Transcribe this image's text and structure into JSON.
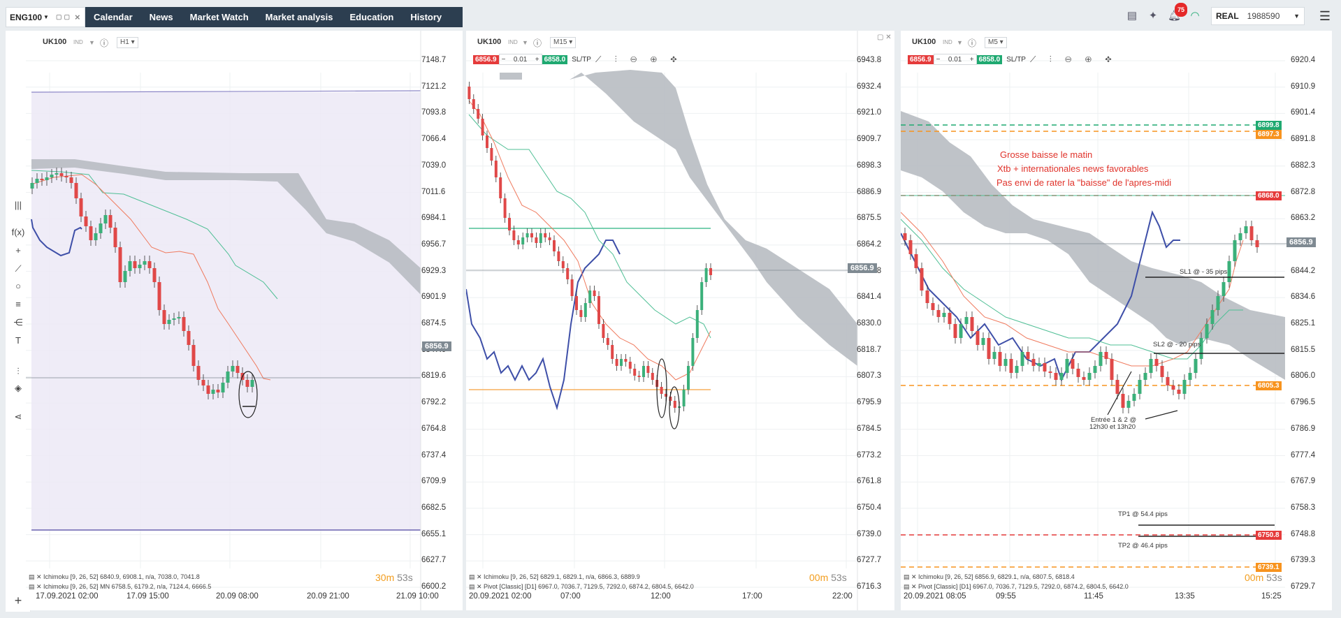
{
  "workspace_tab": {
    "label": "ENG100"
  },
  "nav": [
    "Calendar",
    "News",
    "Market Watch",
    "Market analysis",
    "Education",
    "History"
  ],
  "notifications": {
    "count": "75"
  },
  "account": {
    "mode": "REAL",
    "number": "1988590"
  },
  "colors": {
    "bid": "#e53b3b",
    "ask": "#1fa971",
    "nav_bg": "#2c3e50",
    "timer": "#f29d1e",
    "pivot": "#f7931e",
    "resistance": "#e53b3b",
    "annotation": "#e0332b"
  },
  "left_tools": [
    "columns-icon",
    "function-icon",
    "crosshair-icon",
    "trendline-icon",
    "circle-icon",
    "fib-icon",
    "pitchfork-icon",
    "text-icon",
    "settings-icon",
    "layers-icon",
    "share-icon",
    "plus-icon"
  ],
  "charts": [
    {
      "symbol": "UK100",
      "symbol_type": "IND",
      "timeframe": "H1",
      "price_labels": [
        "7148.7",
        "7121.2",
        "7093.8",
        "7066.4",
        "7039.0",
        "7011.6",
        "6984.1",
        "6956.7",
        "6929.3",
        "6901.9",
        "6874.5",
        "6847.0",
        "6819.6",
        "6792.2",
        "6764.8",
        "6737.4",
        "6709.9",
        "6682.5",
        "6655.1",
        "6627.7",
        "6600.2"
      ],
      "current_price": "6856.9",
      "time_labels": [
        "17.09.2021 02:00",
        "17.09 15:00",
        "20.09 08:00",
        "20.09 21:00",
        "21.09 10:00"
      ],
      "indicators": [
        "Ichimoku [9, 26, 52] 6840.9, 6908.1, n/a, 7038.0, 7041.8",
        "Ichimoku [9, 26, 52] MN 6758.5, 6179.2, n/a, 7124.4, 6666.5"
      ],
      "timer_min": "30m",
      "timer_sec": "53s"
    },
    {
      "symbol": "UK100",
      "symbol_type": "IND",
      "timeframe": "M15",
      "bid": "6856.9",
      "volume": "0.01",
      "ask": "6858.0",
      "sltp_label": "SL/TP",
      "price_labels": [
        "6943.8",
        "6932.4",
        "6921.0",
        "6909.7",
        "6898.3",
        "6886.9",
        "6875.5",
        "6864.2",
        "6852.8",
        "6841.4",
        "6830.0",
        "6818.7",
        "6807.3",
        "6795.9",
        "6784.5",
        "6773.2",
        "6761.8",
        "6750.4",
        "6739.0",
        "6727.7",
        "6716.3"
      ],
      "current_price": "6856.9",
      "time_labels": [
        "20.09.2021 02:00",
        "07:00",
        "12:00",
        "17:00",
        "22:00"
      ],
      "indicators": [
        "Ichimoku [9, 26, 52] 6829.1, 6829.1, n/a, 6866.3, 6889.9",
        "Pivot [Classic] [D1] 6967.0, 7036.7, 7129.5, 7292.0, 6874.2, 6804.5, 6642.0"
      ],
      "timer_min": "00m",
      "timer_sec": "53s"
    },
    {
      "symbol": "UK100",
      "symbol_type": "IND",
      "timeframe": "M5",
      "bid": "6856.9",
      "volume": "0.01",
      "ask": "6858.0",
      "sltp_label": "SL/TP",
      "price_labels": [
        "6920.4",
        "6910.9",
        "6901.4",
        "6891.8",
        "6882.3",
        "6872.8",
        "6863.2",
        "6853.7",
        "6844.2",
        "6834.6",
        "6825.1",
        "6815.5",
        "6806.0",
        "6796.5",
        "6786.9",
        "6777.4",
        "6767.9",
        "6758.3",
        "6748.8",
        "6739.3",
        "6729.7"
      ],
      "current_price": "6856.9",
      "tags": {
        "r2": "6899.8",
        "r2b": "6897.3",
        "r1": "6868.0",
        "s1": "6805.3",
        "s2": "6750.8",
        "s3": "6739.1"
      },
      "annotations": [
        "Grosse baisse le matin",
        "Xtb + internationales news favorables",
        "Pas envi de rater la \"baisse\" de l'apres-midi"
      ],
      "labels": {
        "sl1": "SL1 @ - 35 pips",
        "sl2": "SL2 @ - 20 pips",
        "entry1": "Entrée 1 & 2 @",
        "entry2": "12h30 et 13h20",
        "tp1": "TP1 @ 54.4 pips",
        "tp2": "TP2 @ 46.4 pips"
      },
      "time_labels": [
        "20.09.2021 08:05",
        "09:55",
        "11:45",
        "13:35",
        "15:25"
      ],
      "indicators": [
        "Ichimoku [9, 26, 52] 6856.9, 6829.1, n/a, 6807.5, 6818.4",
        "Pivot [Classic] [D1] 6967.0, 7036.7, 7129.5, 7292.0, 6874.2, 6804.5, 6642.0"
      ],
      "timer_min": "00m",
      "timer_sec": "53s"
    }
  ]
}
